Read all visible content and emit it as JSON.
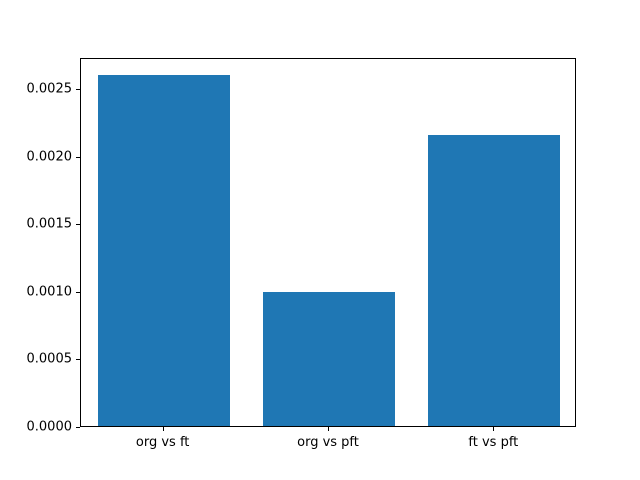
{
  "chart_data": {
    "type": "bar",
    "title": "",
    "xlabel": "",
    "ylabel": "",
    "categories": [
      "org vs ft",
      "org vs pft",
      "ft vs pft"
    ],
    "values": [
      0.0026,
      0.00099,
      0.00215
    ],
    "ylim": [
      0.0,
      0.00273
    ],
    "yticks": [
      0.0,
      0.0005,
      0.001,
      0.0015,
      0.002,
      0.0025
    ],
    "ytick_labels": [
      "0.0000",
      "0.0005",
      "0.0010",
      "0.0015",
      "0.0020",
      "0.0025"
    ],
    "bar_color": "#1f77b4",
    "background_color": "#ffffff",
    "grid": false,
    "legend": "none",
    "bar_width_fraction": 0.8
  }
}
